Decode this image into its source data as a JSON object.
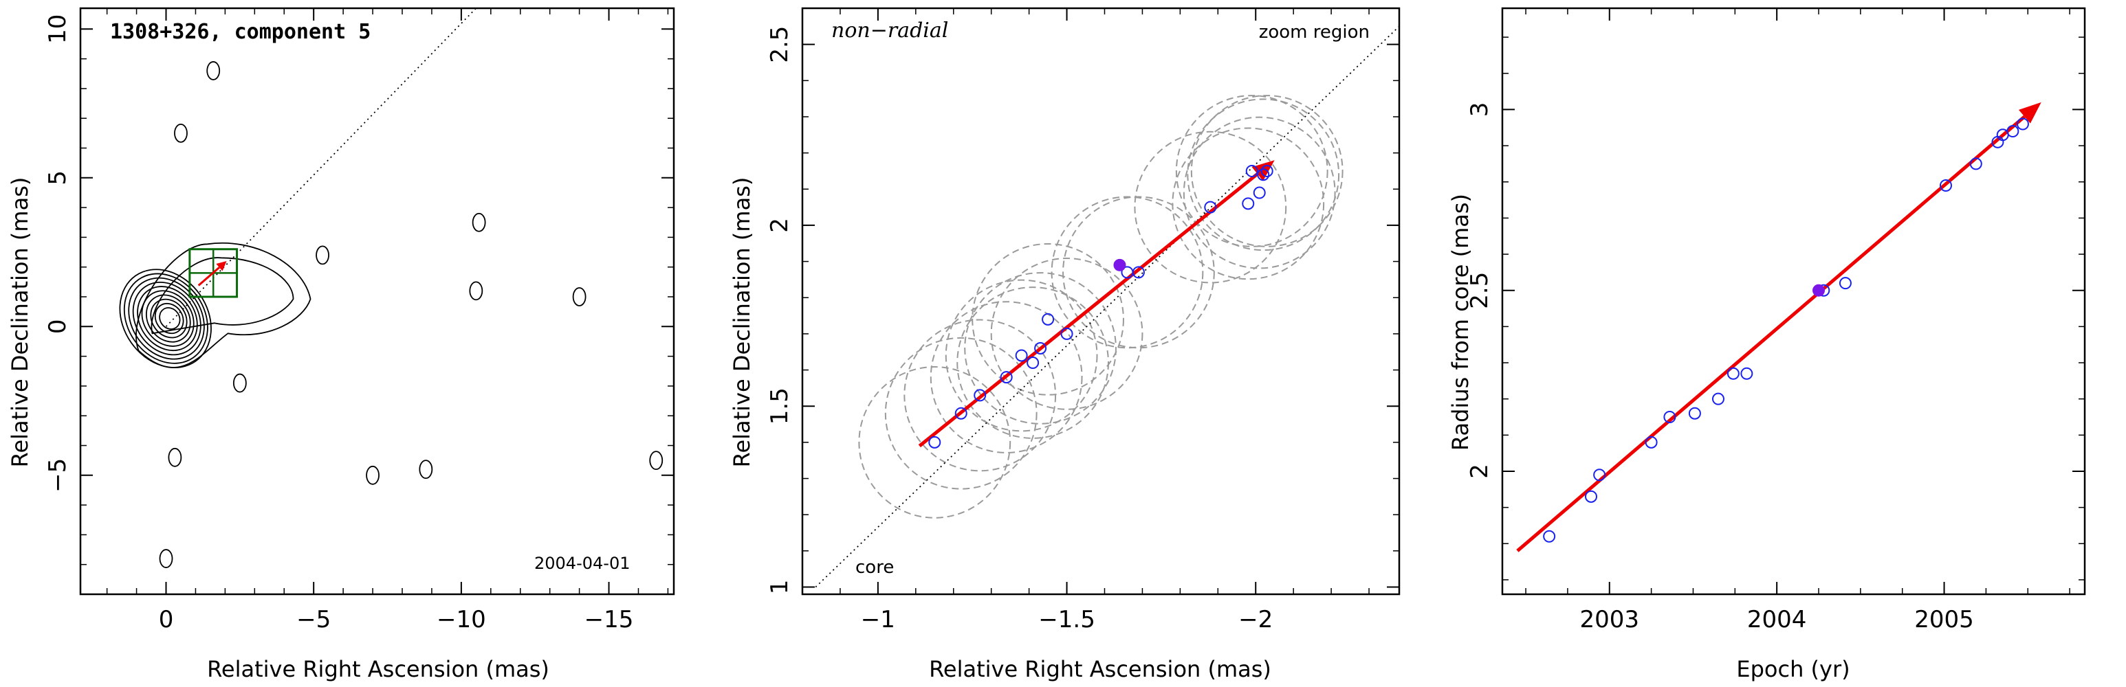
{
  "colors": {
    "fit": "#ee0000",
    "circles": "#1a22ee",
    "highlight": "#7b16e8",
    "gaussian": "#9a9a9a",
    "box": "#0b6a0b"
  },
  "chart_data": [
    {
      "type": "scatter",
      "title": "1308+326, component 5",
      "annotation": "2004-04-01",
      "xlabel": "Relative Right Ascension (mas)",
      "ylabel": "Relative Declination (mas)",
      "xlim": [
        2.9,
        -17.2
      ],
      "ylim": [
        -9.0,
        10.7
      ],
      "xticks": [
        0,
        -5,
        -10,
        -15
      ],
      "xtick_labels": [
        "0",
        "−5",
        "−10",
        "−15"
      ],
      "yticks": [
        -5,
        0,
        5,
        10
      ],
      "ytick_labels": [
        "−5",
        "0",
        "5",
        "10"
      ],
      "grid": false,
      "ridge_line": [
        [
          0,
          0
        ],
        [
          -10.5,
          10.7
        ]
      ],
      "zoom_box": {
        "x": [
          -0.8,
          -2.4
        ],
        "y": [
          1.0,
          2.6
        ]
      },
      "fit": {
        "x": [
          -1.1,
          -2.05
        ],
        "y": [
          1.38,
          2.2
        ]
      }
    },
    {
      "type": "scatter",
      "title": "non−radial",
      "label_top_right": "zoom region",
      "label_core": "core",
      "xlabel": "Relative Right Ascension (mas)",
      "ylabel": "Relative Declination (mas)",
      "xlim": [
        -0.8,
        -2.38
      ],
      "ylim": [
        0.98,
        2.6
      ],
      "xticks": [
        -1,
        -1.5,
        -2
      ],
      "xtick_labels": [
        "−1",
        "−1.5",
        "−2"
      ],
      "yticks": [
        1,
        1.5,
        2,
        2.5
      ],
      "ytick_labels": [
        "1",
        "1.5",
        "2",
        "2.5"
      ],
      "grid": false,
      "ridge_line": [
        [
          -0.835,
          1.0
        ],
        [
          -2.38,
          2.55
        ]
      ],
      "fit": {
        "x": [
          -1.11,
          -2.05
        ],
        "y": [
          1.39,
          2.18
        ]
      },
      "points": {
        "x": [
          -1.15,
          -1.22,
          -1.27,
          -1.34,
          -1.38,
          -1.41,
          -1.43,
          -1.45,
          -1.5,
          -1.66,
          -1.69,
          -1.88,
          -1.98,
          -2.01,
          -1.99,
          -2.02,
          -2.03
        ],
        "y": [
          1.4,
          1.48,
          1.53,
          1.58,
          1.64,
          1.62,
          1.66,
          1.74,
          1.7,
          1.87,
          1.87,
          2.05,
          2.06,
          2.09,
          2.15,
          2.14,
          2.15
        ]
      },
      "highlight": {
        "x": -1.64,
        "y": 1.89
      },
      "gaussian_fwhm": 0.2
    },
    {
      "type": "scatter",
      "xlabel": "Epoch (yr)",
      "ylabel": "Radius from core (mas)",
      "xlim": [
        2002.36,
        2005.84
      ],
      "ylim": [
        1.66,
        3.28
      ],
      "xticks": [
        2003,
        2004,
        2005
      ],
      "xtick_labels": [
        "2003",
        "2004",
        "2005"
      ],
      "yticks": [
        2,
        2.5,
        3
      ],
      "ytick_labels": [
        "2",
        "2.5",
        "3"
      ],
      "grid": false,
      "fit": {
        "x": [
          2002.45,
          2005.58
        ],
        "y": [
          1.78,
          3.02
        ]
      },
      "points": {
        "x": [
          2002.64,
          2002.89,
          2002.94,
          2003.25,
          2003.36,
          2003.51,
          2003.65,
          2003.74,
          2003.82,
          2004.28,
          2004.41,
          2005.01,
          2005.19,
          2005.32,
          2005.35,
          2005.41,
          2005.47
        ],
        "y": [
          1.82,
          1.93,
          1.99,
          2.08,
          2.15,
          2.16,
          2.2,
          2.27,
          2.27,
          2.5,
          2.52,
          2.79,
          2.85,
          2.91,
          2.93,
          2.94,
          2.96
        ]
      },
      "highlight": {
        "x": 2004.25,
        "y": 2.5
      }
    }
  ]
}
